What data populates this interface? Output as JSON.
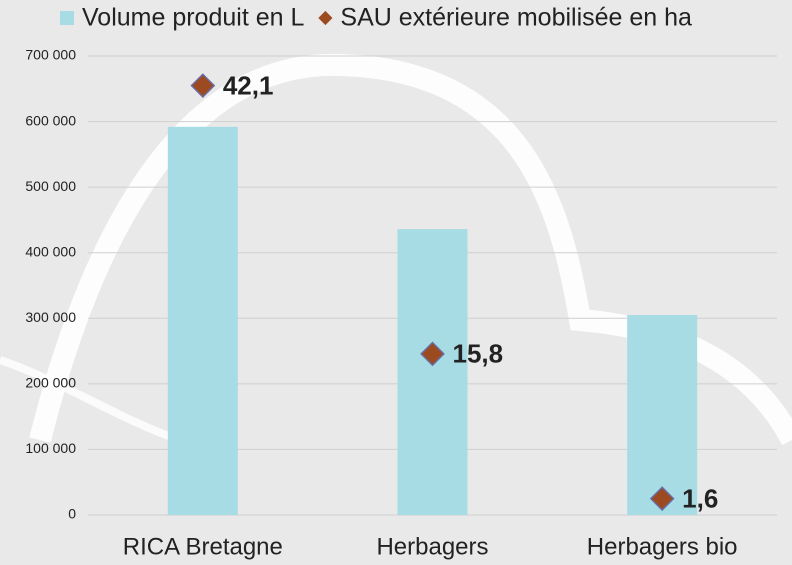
{
  "chart_data": {
    "type": "bar-line",
    "categories": [
      "RICA Bretagne",
      "Herbagers",
      "Herbagers bio"
    ],
    "series": [
      {
        "name": "Volume produit en L",
        "color": "#a8dce5",
        "type": "bar",
        "values": [
          592000,
          436000,
          305000
        ]
      },
      {
        "name": "SAU extérieure mobilisée en ha",
        "color": "#9c4a1f",
        "type": "marker",
        "axis": "y2",
        "values": [
          42.1,
          15.8,
          1.6
        ],
        "value_labels": [
          "42,1",
          "15,8",
          "1,6"
        ]
      }
    ],
    "ylim": [
      0,
      700000
    ],
    "yticks": [
      {
        "value": 0,
        "label": "0"
      },
      {
        "value": 100000,
        "label": "100 000"
      },
      {
        "value": 200000,
        "label": "200 000"
      },
      {
        "value": 300000,
        "label": "300 000"
      },
      {
        "value": 400000,
        "label": "400 000"
      },
      {
        "value": 500000,
        "label": "500 000"
      },
      {
        "value": 600000,
        "label": "600 000"
      },
      {
        "value": 700000,
        "label": "700 000"
      }
    ],
    "y2lim": [
      0,
      45
    ],
    "grid": true,
    "legend": "top"
  }
}
